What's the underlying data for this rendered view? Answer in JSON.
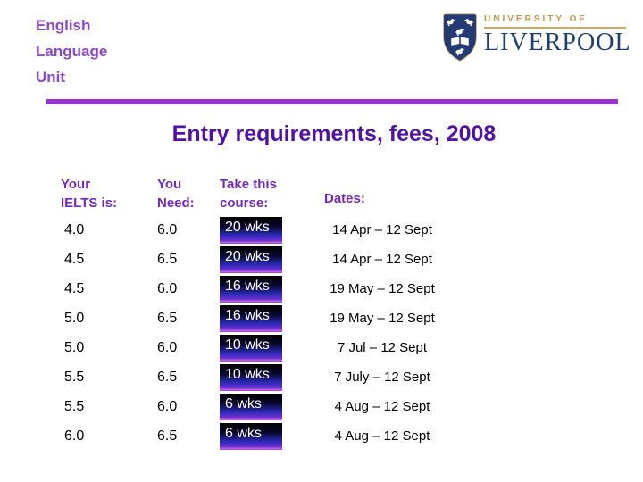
{
  "org": {
    "lines": [
      "English",
      "Language",
      "Unit"
    ]
  },
  "logo": {
    "university_of": "UNIVERSITY OF",
    "liverpool": "LIVERPOOL"
  },
  "title": "Entry requirements, fees, 2008",
  "table": {
    "headers": {
      "ielts": [
        "Your",
        "IELTS is:"
      ],
      "need": [
        "You",
        "Need:"
      ],
      "course": [
        "Take this",
        "course:"
      ],
      "dates": "Dates:"
    },
    "rows": [
      {
        "ielts": "4.0",
        "need": "6.0",
        "course": "20 wks",
        "dates": "14 Apr – 12 Sept"
      },
      {
        "ielts": "4.5",
        "need": "6.5",
        "course": "20 wks",
        "dates": "14 Apr – 12 Sept"
      },
      {
        "ielts": "4.5",
        "need": "6.0",
        "course": "16 wks",
        "dates": "19 May – 12 Sept"
      },
      {
        "ielts": "5.0",
        "need": "6.5",
        "course": "16 wks",
        "dates": "19 May – 12 Sept"
      },
      {
        "ielts": "5.0",
        "need": "6.0",
        "course": "10 wks",
        "dates": "7 Jul – 12 Sept"
      },
      {
        "ielts": "5.5",
        "need": "6.5",
        "course": "10 wks",
        "dates": "7 July – 12 Sept"
      },
      {
        "ielts": "5.5",
        "need": "6.0",
        "course": "6 wks",
        "dates": "4 Aug – 12 Sept"
      },
      {
        "ielts": "6.0",
        "need": "6.5",
        "course": "6 wks",
        "dates": "4 Aug – 12 Sept"
      }
    ]
  },
  "icons": {
    "crest": "liverpool-crest-shield-with-liver-birds-and-book"
  },
  "colors": {
    "elu_purple": "#8a46cc",
    "rule_purple": "#9933cc",
    "title_purple": "#5012a8",
    "header_purple": "#7229c0",
    "body_text": "#000000",
    "box_text": "#ffffff",
    "g0": "#000000",
    "g1": "#2a2ab4",
    "g2": "#6a2fd0",
    "g3": "#c46ae2",
    "crest_navy": "#233a72",
    "crest_gold": "#c09a4a",
    "crest_gold_line": "#c9ab6e",
    "liverpool_navy": "#1d3f72"
  }
}
